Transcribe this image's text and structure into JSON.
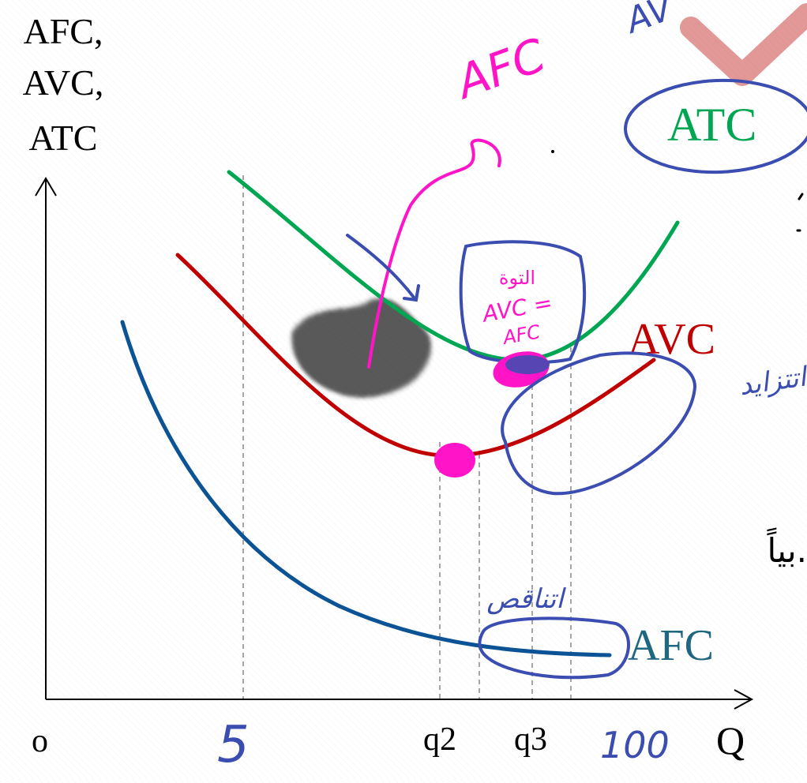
{
  "chart_data": {
    "type": "line",
    "ylabel_lines": [
      "AFC,",
      "AVC,",
      "ATC"
    ],
    "xlabel": "Q",
    "origin_label": "o",
    "x_tick_labels": [
      "q2",
      "q3"
    ],
    "grid": false,
    "series": [
      {
        "name": "ATC",
        "color": "#00a651"
      },
      {
        "name": "AVC",
        "color": "#c00000"
      },
      {
        "name": "AFC",
        "color": "#0b5394"
      }
    ],
    "label_colors": {
      "ATC": "#00a651",
      "AVC": "#c00000",
      "AFC": "#1f6680"
    }
  },
  "annotations": {
    "ink_blue": "#3b4db0",
    "ink_pink": "#ff14c8",
    "top_pink": "AFC",
    "box_pink_line1": "التوة",
    "box_pink_line2": "AVC =",
    "box_pink_line3": "AFC",
    "arabic_increasing": "اتتزايد",
    "arabic_decreasing": "اتناقص",
    "five": "5",
    "hundred": "100",
    "corner_partial": "AV",
    "edge_text": "بياً."
  }
}
